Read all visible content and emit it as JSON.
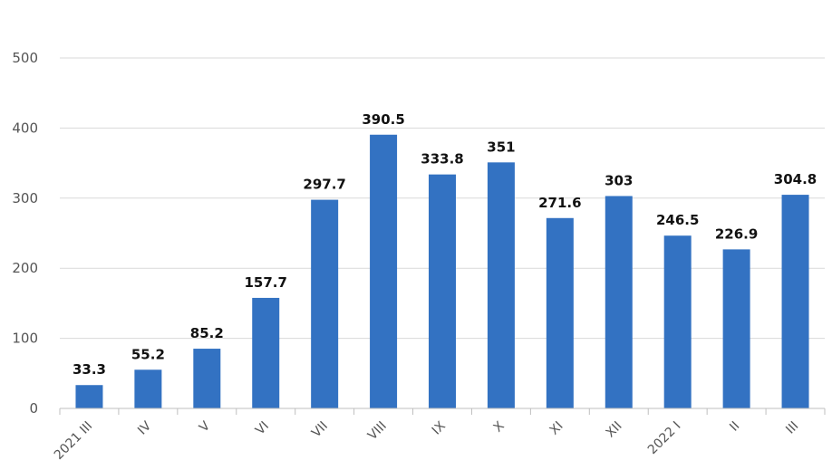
{
  "chart_data": {
    "type": "bar",
    "categories": [
      "2021 III",
      "IV",
      "V",
      "VI",
      "VII",
      "VIII",
      "IX",
      "X",
      "XI",
      "XII",
      "2022 I",
      "II",
      "III"
    ],
    "values": [
      33.3,
      55.2,
      85.2,
      157.7,
      297.7,
      390.5,
      333.8,
      351,
      271.6,
      303,
      246.5,
      226.9,
      304.8
    ],
    "value_labels": [
      "33.3",
      "55.2",
      "85.2",
      "157.7",
      "297.7",
      "390.5",
      "333.8",
      "351",
      "271.6",
      "303",
      "246.5",
      "226.9",
      "304.8"
    ],
    "ylim": [
      0,
      500
    ],
    "yticks": [
      0,
      100,
      200,
      300,
      400,
      500
    ],
    "ytick_labels": [
      "0",
      "100",
      "200",
      "300",
      "400",
      "500"
    ],
    "grid": true,
    "legend": "none",
    "colors": {
      "bar": "#3372c2",
      "grid": "#d9d9d9",
      "axis": "#bfbfbf",
      "tick_text": "#555555",
      "label_text": "#111111"
    }
  }
}
